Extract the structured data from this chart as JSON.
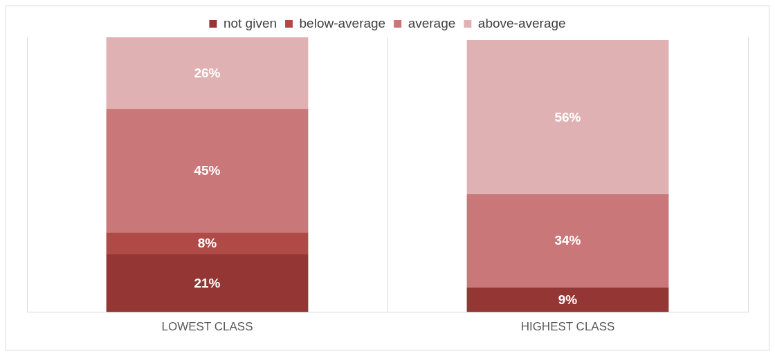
{
  "chart_data": {
    "type": "bar",
    "stacked": true,
    "categories": [
      "LOWEST CLASS",
      "HIGHEST CLASS"
    ],
    "series": [
      {
        "name": "not given",
        "color": "#943634",
        "values": [
          21,
          9
        ],
        "value_labels": [
          "21%",
          "9%"
        ]
      },
      {
        "name": "below-average",
        "color": "#b04a47",
        "values": [
          8,
          null
        ],
        "value_labels": [
          "8%",
          null
        ]
      },
      {
        "name": "average",
        "color": "#c97779",
        "values": [
          45,
          34
        ],
        "value_labels": [
          "45%",
          "34%"
        ]
      },
      {
        "name": "above-average",
        "color": "#e0b1b2",
        "values": [
          26,
          56
        ],
        "value_labels": [
          "26%",
          "56%"
        ]
      }
    ],
    "legend": "top",
    "grid": "x",
    "tick_labels": "x"
  }
}
